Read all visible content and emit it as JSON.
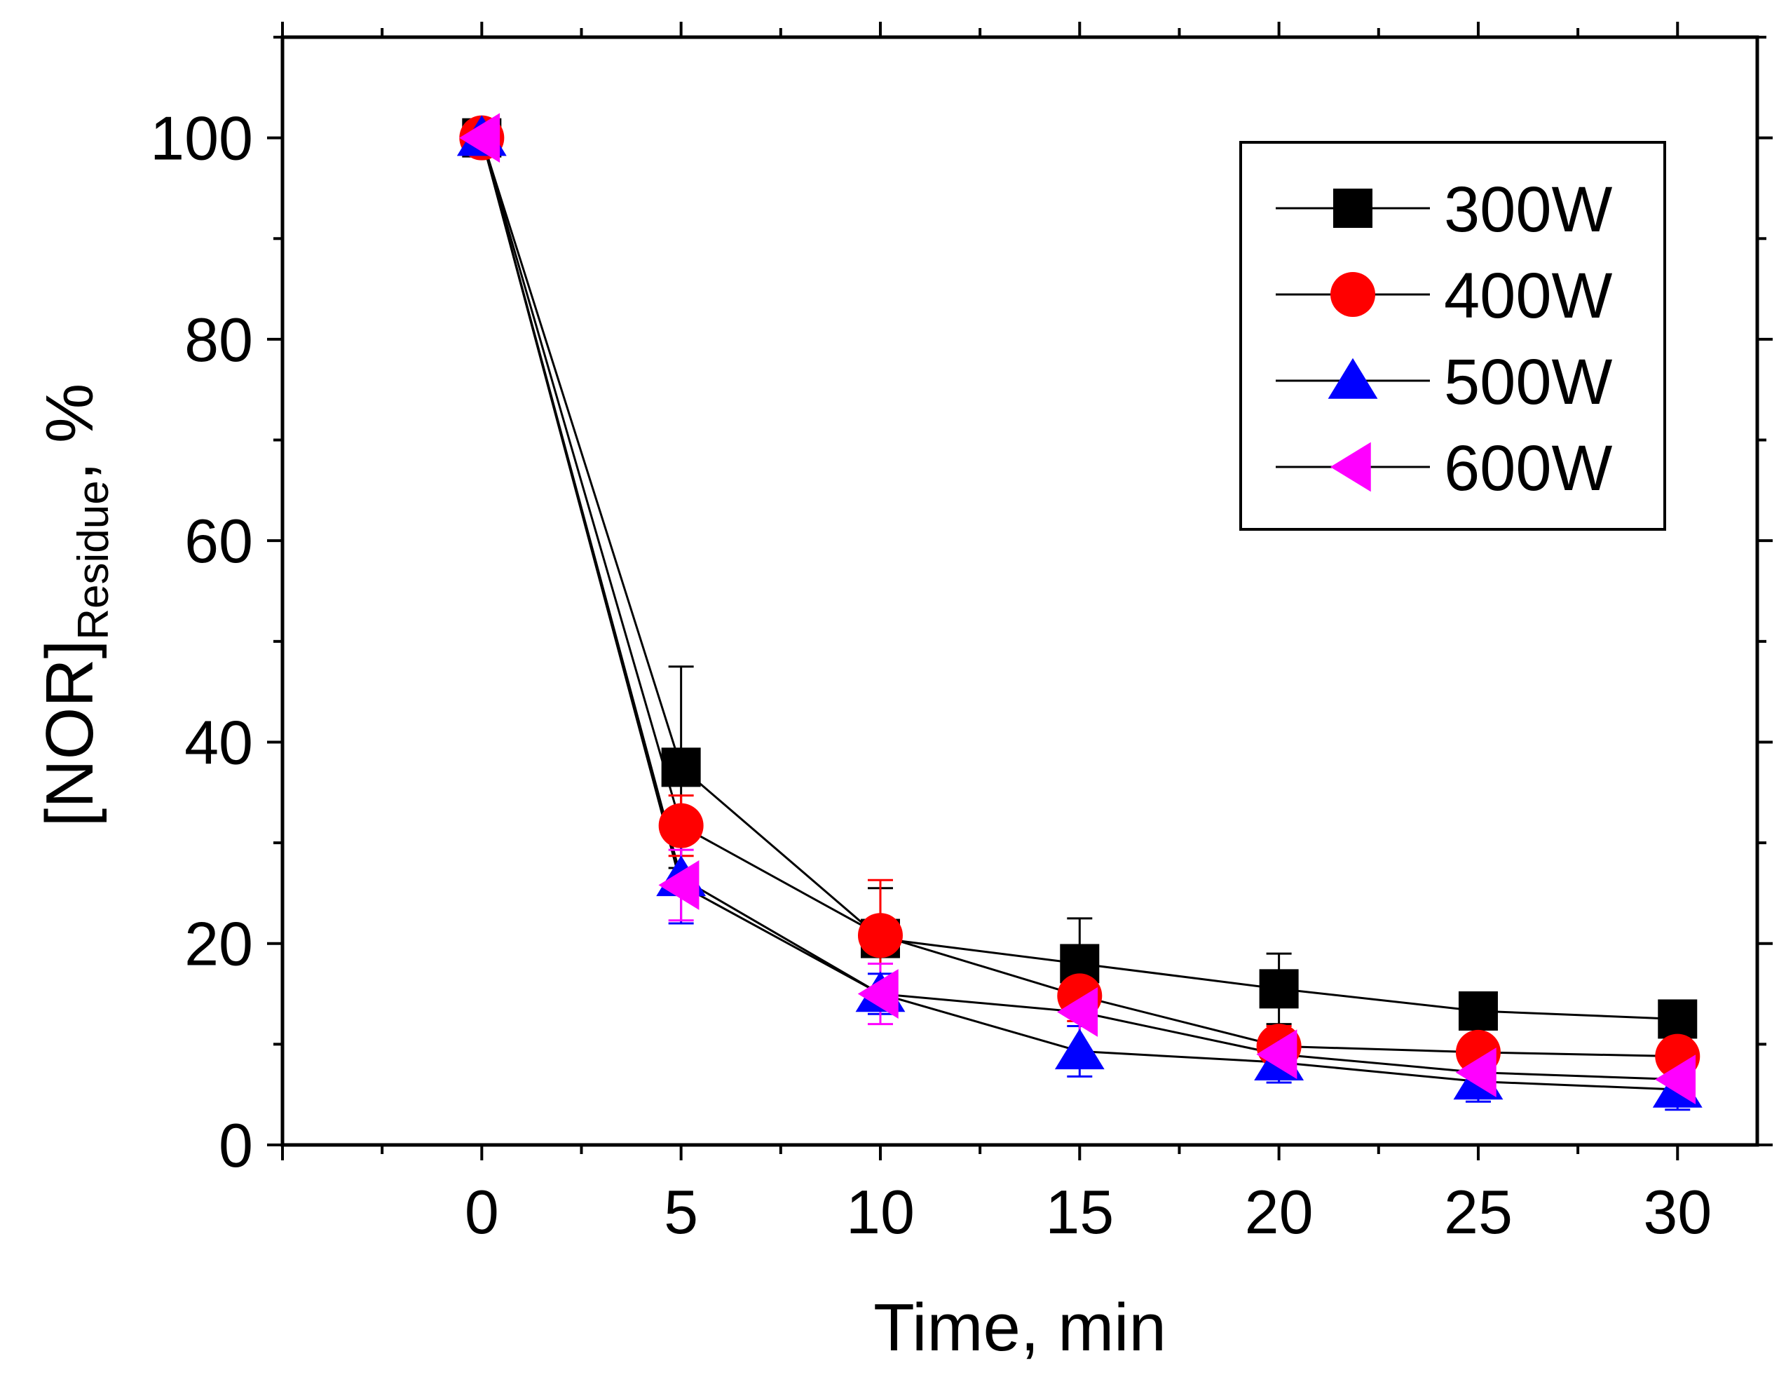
{
  "chart_data": {
    "type": "line",
    "title": "",
    "xlabel": "Time, min",
    "ylabel": {
      "main": "[NOR]",
      "subscript": "Residue",
      "suffix": ", %"
    },
    "xlim": [
      -5,
      32
    ],
    "ylim": [
      0,
      110
    ],
    "x": [
      0,
      5,
      10,
      15,
      20,
      25,
      30
    ],
    "x_ticks": [
      "0",
      "5",
      "10",
      "15",
      "20",
      "25",
      "30"
    ],
    "y_ticks": [
      "0",
      "20",
      "40",
      "60",
      "80",
      "100"
    ],
    "legend_position": "top-right",
    "series": [
      {
        "name": "300W",
        "marker": "square",
        "color": "#000000",
        "values": [
          100,
          37.5,
          20.5,
          18.0,
          15.5,
          13.3,
          12.5
        ],
        "errors": [
          0,
          10.0,
          5.0,
          4.5,
          3.5,
          1.5,
          1.0
        ]
      },
      {
        "name": "400W",
        "marker": "circle",
        "color": "#ff0000",
        "values": [
          100,
          31.7,
          20.8,
          14.8,
          9.8,
          9.2,
          8.8
        ],
        "errors": [
          0,
          3.0,
          5.5,
          2.5,
          2.0,
          1.0,
          1.0
        ]
      },
      {
        "name": "500W",
        "marker": "triangle-up",
        "color": "#0000ff",
        "values": [
          100,
          26.5,
          15.0,
          9.3,
          8.2,
          6.3,
          5.5
        ],
        "errors": [
          0,
          4.5,
          2.0,
          2.5,
          2.0,
          2.0,
          2.0
        ]
      },
      {
        "name": "600W",
        "marker": "triangle-left",
        "color": "#ff00ff",
        "values": [
          100,
          25.8,
          15.0,
          13.2,
          9.0,
          7.2,
          6.5
        ],
        "errors": [
          0,
          3.5,
          3.0,
          4.0,
          1.5,
          1.5,
          1.5
        ]
      }
    ]
  }
}
